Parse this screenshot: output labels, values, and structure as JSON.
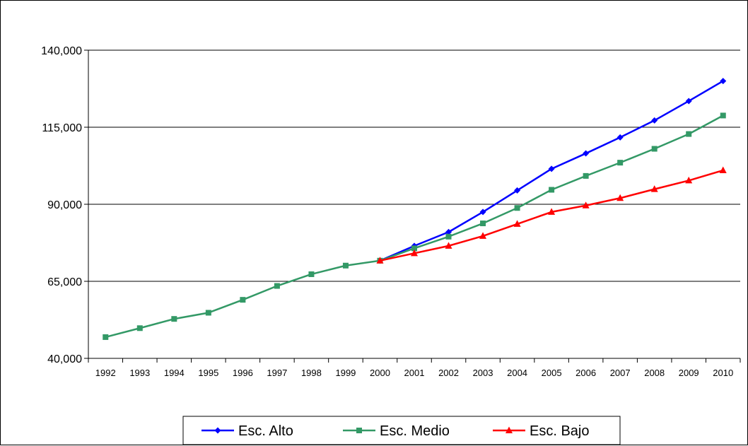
{
  "chart_data": {
    "type": "line",
    "title": "",
    "xlabel": "",
    "ylabel": "",
    "categories": [
      "1992",
      "1993",
      "1994",
      "1995",
      "1996",
      "1997",
      "1998",
      "1999",
      "2000",
      "2001",
      "2002",
      "2003",
      "2004",
      "2005",
      "2006",
      "2007",
      "2008",
      "2009",
      "2010"
    ],
    "ylim": [
      40000,
      140000
    ],
    "yticks": [
      40000,
      65000,
      90000,
      115000,
      140000
    ],
    "ytick_labels": [
      "40,000",
      "65,000",
      "90,000",
      "115,000",
      "140,000"
    ],
    "grid": true,
    "legend_position": "bottom",
    "series": [
      {
        "name": "Esc. Alto",
        "color": "#0000ff",
        "marker": "diamond",
        "values": [
          null,
          null,
          null,
          null,
          null,
          null,
          null,
          null,
          71700,
          76500,
          81000,
          87500,
          94500,
          101500,
          106500,
          111700,
          117200,
          123500,
          130000
        ]
      },
      {
        "name": "Esc. Medio",
        "color": "#339966",
        "marker": "square",
        "values": [
          46900,
          49800,
          52800,
          54800,
          59000,
          63500,
          67300,
          70100,
          71700,
          75700,
          79500,
          83800,
          88800,
          94700,
          99200,
          103500,
          108000,
          112800,
          118800
        ]
      },
      {
        "name": "Esc. Bajo",
        "color": "#ff0000",
        "marker": "triangle",
        "values": [
          null,
          null,
          null,
          null,
          null,
          null,
          null,
          null,
          71700,
          74100,
          76500,
          79700,
          83600,
          87500,
          89600,
          92000,
          94900,
          97700,
          101000
        ]
      }
    ]
  }
}
